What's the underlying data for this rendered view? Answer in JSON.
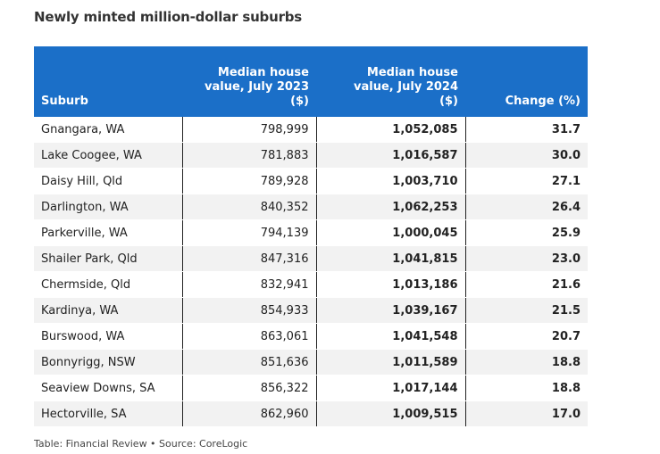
{
  "chart_data": {
    "type": "table",
    "title": "Newly minted million-dollar suburbs",
    "columns": [
      "Suburb",
      "Median house value, July 2023 ($)",
      "Median house value, July 2024 ($)",
      "Change (%)"
    ],
    "rows": [
      [
        "Gnangara, WA",
        "798,999",
        "1,052,085",
        "31.7"
      ],
      [
        "Lake Coogee, WA",
        "781,883",
        "1,016,587",
        "30.0"
      ],
      [
        "Daisy Hill, Qld",
        "789,928",
        "1,003,710",
        "27.1"
      ],
      [
        "Darlington, WA",
        "840,352",
        "1,062,253",
        "26.4"
      ],
      [
        "Parkerville, WA",
        "794,139",
        "1,000,045",
        "25.9"
      ],
      [
        "Shailer Park, Qld",
        "847,316",
        "1,041,815",
        "23.0"
      ],
      [
        "Chermside, Qld",
        "832,941",
        "1,013,186",
        "21.6"
      ],
      [
        "Kardinya, WA",
        "854,933",
        "1,039,167",
        "21.5"
      ],
      [
        "Burswood, WA",
        "863,061",
        "1,041,548",
        "20.7"
      ],
      [
        "Bonnyrigg, NSW",
        "851,636",
        "1,011,589",
        "18.8"
      ],
      [
        "Seaview Downs, SA",
        "856,322",
        "1,017,144",
        "18.8"
      ],
      [
        "Hectorville, SA",
        "862,960",
        "1,009,515",
        "17.0"
      ]
    ],
    "footer": "Table: Financial Review • Source: CoreLogic"
  },
  "colors": {
    "header_bg": "#1b6fc8",
    "header_text": "#ffffff",
    "stripe": "#f2f2f2"
  }
}
